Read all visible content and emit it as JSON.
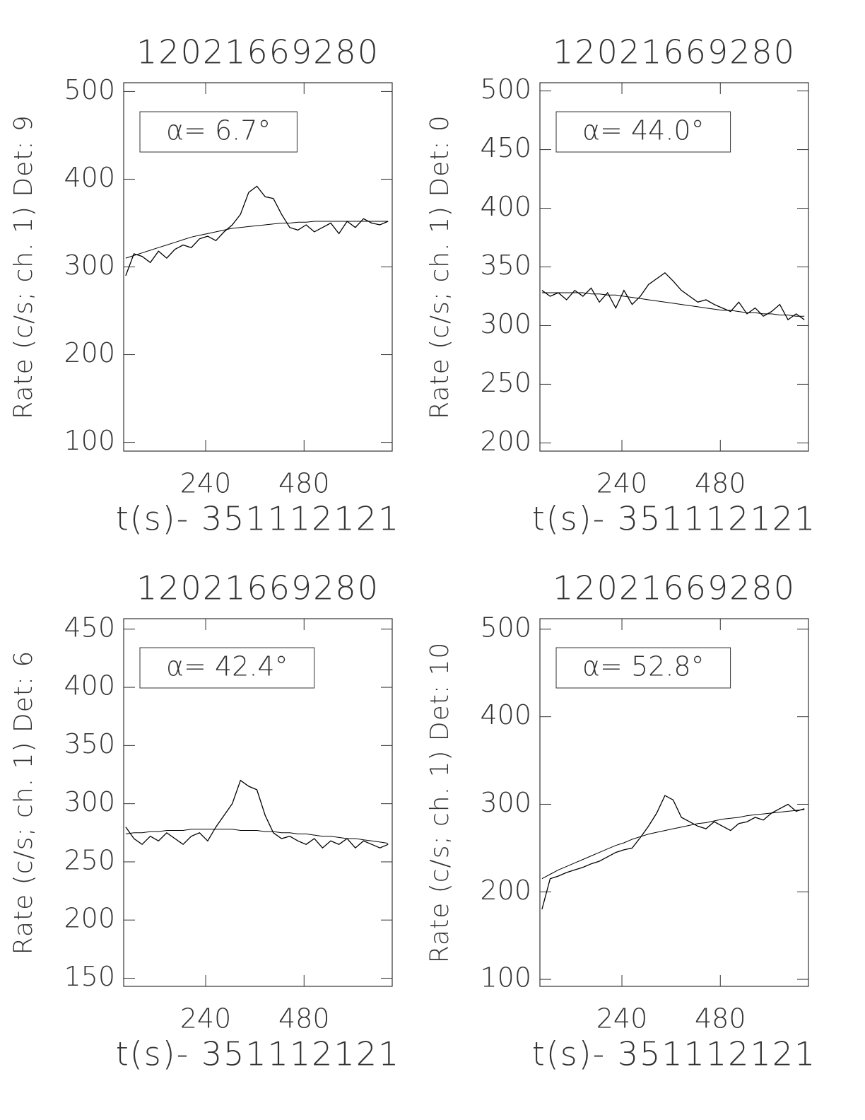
{
  "chart_data": [
    {
      "type": "line",
      "title": "12021669280",
      "xlabel": "t(s)- 351112121",
      "ylabel": "Rate (c/s; ch. 1) Det: 9",
      "annotation": "α= 6.7°",
      "x": [
        45,
        65,
        85,
        105,
        125,
        145,
        165,
        185,
        205,
        225,
        245,
        265,
        285,
        305,
        325,
        345,
        365,
        385,
        405,
        425,
        445,
        465,
        485,
        505,
        525,
        545,
        565,
        585,
        605,
        625,
        645,
        665,
        685
      ],
      "series": [
        {
          "color": "#000000",
          "values": [
            290,
            315,
            312,
            305,
            318,
            310,
            320,
            325,
            322,
            332,
            335,
            330,
            340,
            348,
            360,
            385,
            392,
            380,
            378,
            360,
            345,
            342,
            348,
            340,
            345,
            350,
            338,
            352,
            345,
            355,
            350,
            348,
            352
          ]
        },
        {
          "color": "#000000",
          "values": [
            310,
            313,
            316,
            319,
            322,
            325,
            328,
            331,
            334,
            336,
            338,
            340,
            342,
            344,
            345,
            346,
            347,
            348,
            349,
            350,
            350,
            351,
            351,
            352,
            352,
            352,
            352,
            352,
            352,
            352,
            352,
            352,
            352
          ]
        }
      ],
      "xlim": [
        40,
        695
      ],
      "xticks": [
        240,
        480
      ],
      "ylim": [
        90,
        510
      ],
      "yticks": [
        100,
        200,
        300,
        400,
        500
      ]
    },
    {
      "type": "line",
      "title": "12021669280",
      "xlabel": "t(s)- 351112121",
      "ylabel": "Rate (c/s; ch. 1) Det: 0",
      "annotation": "α= 44.0°",
      "x": [
        45,
        65,
        85,
        105,
        125,
        145,
        165,
        185,
        205,
        225,
        245,
        265,
        285,
        305,
        325,
        345,
        365,
        385,
        405,
        425,
        445,
        465,
        485,
        505,
        525,
        545,
        565,
        585,
        605,
        625,
        645,
        665,
        685
      ],
      "series": [
        {
          "color": "#000000",
          "values": [
            330,
            325,
            328,
            322,
            330,
            325,
            332,
            320,
            328,
            315,
            330,
            318,
            325,
            335,
            340,
            345,
            338,
            330,
            325,
            320,
            322,
            318,
            315,
            312,
            320,
            310,
            315,
            308,
            312,
            318,
            305,
            310,
            305
          ]
        },
        {
          "color": "#000000",
          "values": [
            328,
            328,
            328,
            328,
            328,
            328,
            327,
            327,
            326,
            326,
            325,
            324,
            323,
            322,
            321,
            320,
            319,
            318,
            317,
            316,
            315,
            314,
            313,
            313,
            312,
            311,
            311,
            310,
            310,
            309,
            309,
            308,
            308
          ]
        }
      ],
      "xlim": [
        40,
        695
      ],
      "xticks": [
        240,
        480
      ],
      "ylim": [
        193,
        507
      ],
      "yticks": [
        200,
        250,
        300,
        350,
        400,
        450,
        500
      ]
    },
    {
      "type": "line",
      "title": "12021669280",
      "xlabel": "t(s)- 351112121",
      "ylabel": "Rate (c/s; ch. 1) Det: 6",
      "annotation": "α= 42.4°",
      "x": [
        45,
        65,
        85,
        105,
        125,
        145,
        165,
        185,
        205,
        225,
        245,
        265,
        285,
        305,
        325,
        345,
        365,
        385,
        405,
        425,
        445,
        465,
        485,
        505,
        525,
        545,
        565,
        585,
        605,
        625,
        645,
        665,
        685
      ],
      "series": [
        {
          "color": "#000000",
          "values": [
            280,
            270,
            265,
            272,
            268,
            275,
            270,
            265,
            272,
            275,
            268,
            280,
            290,
            300,
            320,
            315,
            312,
            290,
            275,
            270,
            272,
            268,
            265,
            270,
            262,
            268,
            265,
            270,
            262,
            268,
            265,
            262,
            265
          ]
        },
        {
          "color": "#000000",
          "values": [
            274,
            275,
            275,
            276,
            276,
            277,
            277,
            277,
            278,
            278,
            278,
            278,
            278,
            278,
            277,
            277,
            277,
            276,
            276,
            275,
            275,
            274,
            274,
            273,
            272,
            272,
            271,
            270,
            270,
            269,
            268,
            267,
            266
          ]
        }
      ],
      "xlim": [
        40,
        695
      ],
      "xticks": [
        240,
        480
      ],
      "ylim": [
        143,
        459
      ],
      "yticks": [
        150,
        200,
        250,
        300,
        350,
        400,
        450
      ]
    },
    {
      "type": "line",
      "title": "12021669280",
      "xlabel": "t(s)- 351112121",
      "ylabel": "Rate (c/s; ch. 1) Det: 10",
      "annotation": "α= 52.8°",
      "x": [
        45,
        65,
        85,
        105,
        125,
        145,
        165,
        185,
        205,
        225,
        245,
        265,
        285,
        305,
        325,
        345,
        365,
        385,
        405,
        425,
        445,
        465,
        485,
        505,
        525,
        545,
        565,
        585,
        605,
        625,
        645,
        665,
        685
      ],
      "series": [
        {
          "color": "#000000",
          "values": [
            180,
            215,
            218,
            222,
            225,
            228,
            232,
            235,
            240,
            245,
            248,
            250,
            262,
            275,
            290,
            310,
            305,
            285,
            280,
            275,
            272,
            280,
            275,
            270,
            278,
            280,
            285,
            282,
            290,
            295,
            300,
            292,
            295
          ]
        },
        {
          "color": "#000000",
          "values": [
            215,
            220,
            225,
            229,
            233,
            237,
            241,
            245,
            249,
            253,
            256,
            260,
            263,
            266,
            268,
            270,
            272,
            274,
            276,
            278,
            279,
            281,
            283,
            284,
            285,
            287,
            288,
            289,
            290,
            291,
            292,
            293,
            294
          ]
        }
      ],
      "xlim": [
        40,
        695
      ],
      "xticks": [
        240,
        480
      ],
      "ylim": [
        92,
        512
      ],
      "yticks": [
        100,
        200,
        300,
        400,
        500
      ]
    }
  ]
}
